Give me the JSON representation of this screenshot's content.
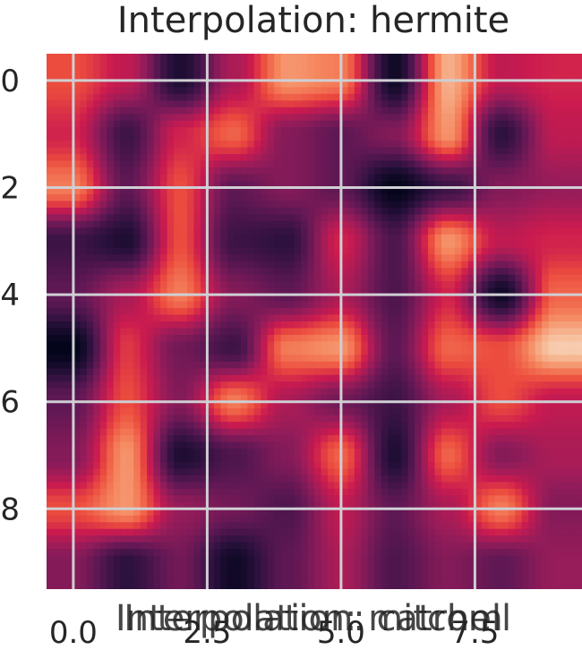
{
  "chart_data": {
    "type": "heatmap",
    "title": "Interpolation: hermite",
    "overlapping_title": "Interpolation: mitchell",
    "overlapping_title_second": "Interpolation: catrom",
    "interpolation": "hermite",
    "colormap": "rocket",
    "grid": true,
    "x_ticks": [
      0.0,
      2.5,
      5.0,
      7.5
    ],
    "x_tick_labels": [
      "0.0",
      "2.5",
      "5.0",
      "7.5"
    ],
    "y_ticks": [
      0,
      2,
      4,
      6,
      8
    ],
    "y_tick_labels": [
      "0",
      "2",
      "4",
      "6",
      "8"
    ],
    "x_extent": [
      -0.5,
      9.5
    ],
    "y_extent": [
      -0.5,
      9.5
    ],
    "values": [
      [
        0.7,
        0.55,
        0.1,
        0.5,
        0.85,
        0.8,
        0.05,
        0.9,
        0.55,
        0.6
      ],
      [
        0.6,
        0.2,
        0.6,
        0.75,
        0.4,
        0.3,
        0.4,
        0.85,
        0.15,
        0.55
      ],
      [
        0.8,
        0.3,
        0.7,
        0.3,
        0.4,
        0.3,
        0.0,
        0.2,
        0.4,
        0.45
      ],
      [
        0.2,
        0.1,
        0.7,
        0.2,
        0.15,
        0.6,
        0.25,
        0.85,
        0.55,
        0.6
      ],
      [
        0.3,
        0.5,
        0.8,
        0.4,
        0.3,
        0.5,
        0.25,
        0.6,
        0.05,
        0.75
      ],
      [
        0.0,
        0.65,
        0.35,
        0.2,
        0.8,
        0.85,
        0.3,
        0.75,
        0.7,
        0.95
      ],
      [
        0.3,
        0.7,
        0.4,
        0.8,
        0.5,
        0.35,
        0.2,
        0.5,
        0.7,
        0.55
      ],
      [
        0.4,
        0.85,
        0.1,
        0.25,
        0.4,
        0.75,
        0.1,
        0.75,
        0.4,
        0.5
      ],
      [
        0.7,
        0.85,
        0.45,
        0.35,
        0.25,
        0.55,
        0.3,
        0.5,
        0.8,
        0.4
      ],
      [
        0.4,
        0.15,
        0.35,
        0.05,
        0.3,
        0.5,
        0.25,
        0.4,
        0.3,
        0.45
      ]
    ]
  }
}
